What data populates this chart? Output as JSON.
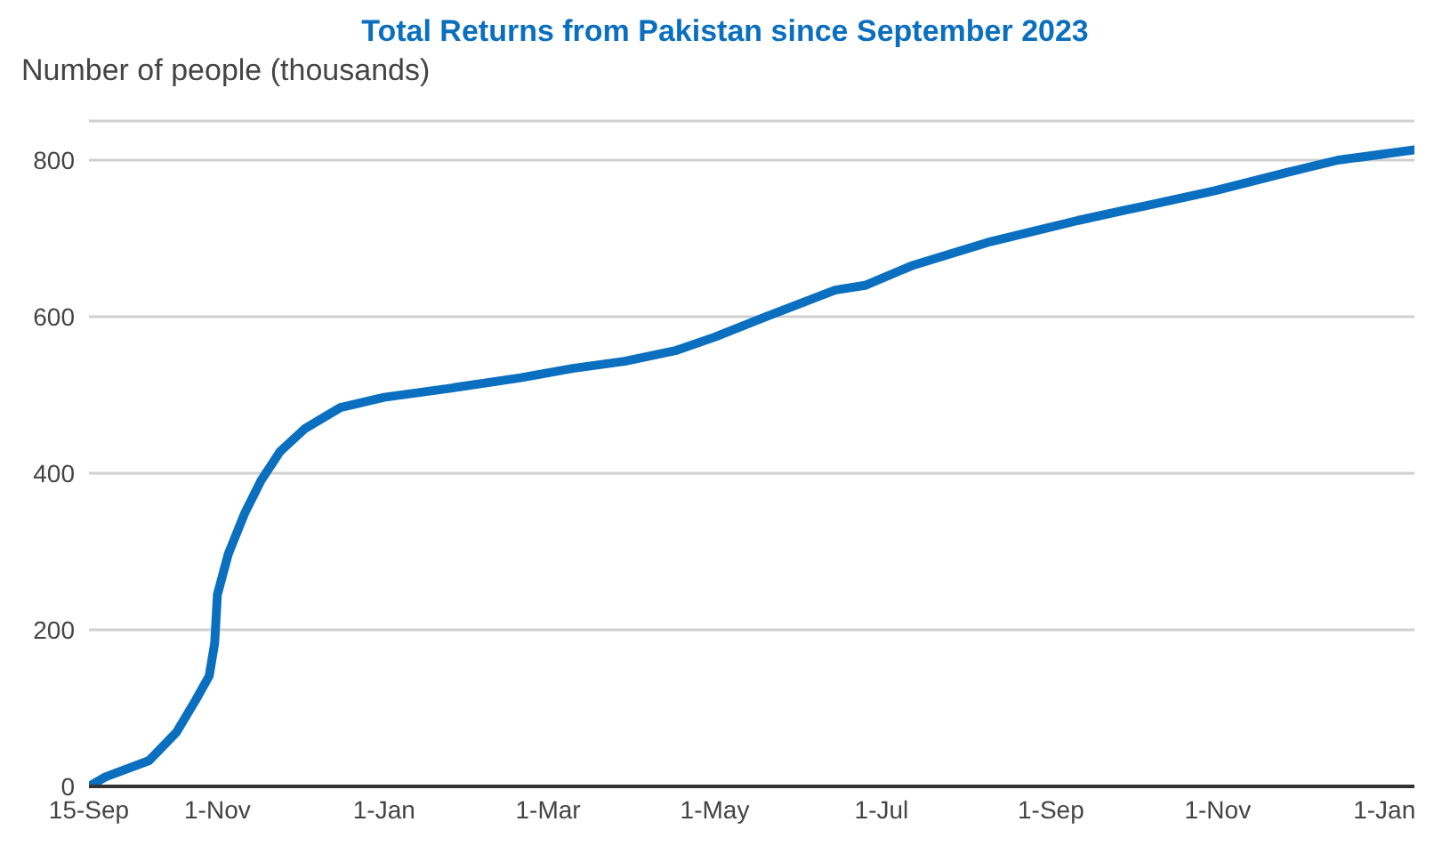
{
  "chart_data": {
    "type": "line",
    "title": "Total Returns from Pakistan since September 2023",
    "ylabel": "Number of people (thousands)",
    "x": [
      "2023-09-15",
      "2023-09-21",
      "2023-10-07",
      "2023-10-17",
      "2023-10-24",
      "2023-10-29",
      "2023-10-31",
      "2023-11-01",
      "2023-11-05",
      "2023-11-11",
      "2023-11-17",
      "2023-11-24",
      "2023-12-03",
      "2023-12-16",
      "2024-01-01",
      "2024-01-26",
      "2024-02-20",
      "2024-03-10",
      "2024-03-29",
      "2024-04-17",
      "2024-05-01",
      "2024-05-19",
      "2024-06-14",
      "2024-06-25",
      "2024-07-12",
      "2024-08-10",
      "2024-09-11",
      "2024-10-06",
      "2024-10-31",
      "2024-11-26",
      "2024-12-15",
      "2025-01-12"
    ],
    "series": [
      {
        "color": "#0b6fc0",
        "values": [
          0,
          12,
          33,
          69,
          110,
          141,
          183,
          245,
          297,
          349,
          391,
          428,
          457,
          484,
          497,
          509,
          522,
          534,
          543,
          557,
          574,
          599,
          634,
          640,
          665,
          696,
          723,
          742,
          761,
          784,
          800,
          813
        ]
      }
    ],
    "xlim": [
      "2023-09-15",
      "2025-01-12"
    ],
    "xticks": [
      {
        "value": "2023-09-15",
        "label": "15-Sep"
      },
      {
        "value": "2023-11-01",
        "label": "1-Nov"
      },
      {
        "value": "2024-01-01",
        "label": "1-Jan"
      },
      {
        "value": "2024-03-01",
        "label": "1-Mar"
      },
      {
        "value": "2024-05-01",
        "label": "1-May"
      },
      {
        "value": "2024-07-01",
        "label": "1-Jul"
      },
      {
        "value": "2024-09-01",
        "label": "1-Sep"
      },
      {
        "value": "2024-11-01",
        "label": "1-Nov"
      },
      {
        "value": "2025-01-01",
        "label": "1-Jan"
      }
    ],
    "ylim": [
      0,
      850
    ],
    "yticks": [
      0,
      200,
      400,
      600,
      800
    ],
    "grid": "y",
    "marker": "none",
    "line_style": "solid"
  }
}
